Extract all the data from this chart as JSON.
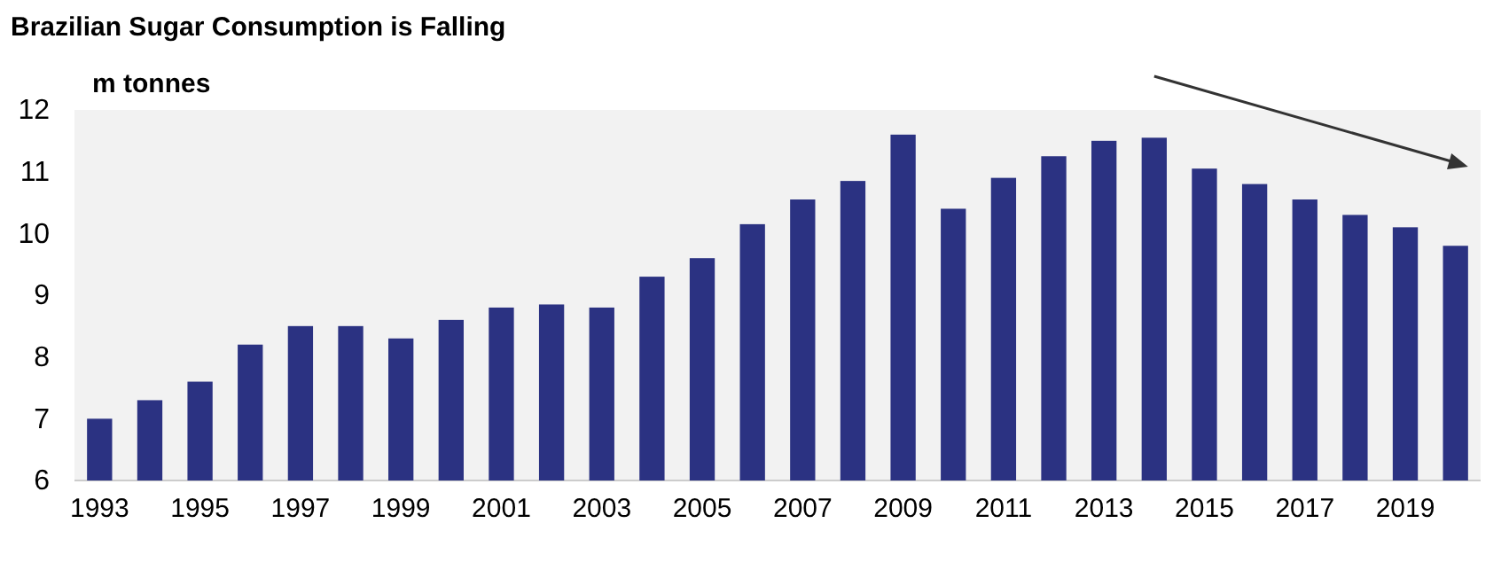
{
  "chart_data": {
    "type": "bar",
    "title": "Brazilian Sugar Consumption is Falling",
    "ylabel": "m tonnes",
    "categories": [
      "1993",
      null,
      "1995",
      null,
      "1997",
      null,
      "1999",
      null,
      "2001",
      null,
      "2003",
      null,
      "2005",
      null,
      "2007",
      null,
      "2009",
      null,
      "2011",
      null,
      "2013",
      null,
      "2015",
      null,
      "2017",
      null,
      "2019",
      null
    ],
    "values": [
      7.0,
      7.3,
      7.6,
      8.2,
      8.5,
      8.5,
      8.3,
      8.6,
      8.8,
      8.85,
      8.8,
      9.3,
      9.6,
      10.15,
      10.55,
      10.85,
      11.6,
      10.4,
      10.9,
      11.25,
      11.5,
      11.55,
      11.05,
      10.8,
      10.55,
      10.3,
      10.1,
      9.8
    ],
    "color": "#2b3282",
    "ylim": [
      6,
      12
    ],
    "yticks": [
      6,
      7,
      8,
      9,
      10,
      11,
      12
    ],
    "grid": false
  }
}
